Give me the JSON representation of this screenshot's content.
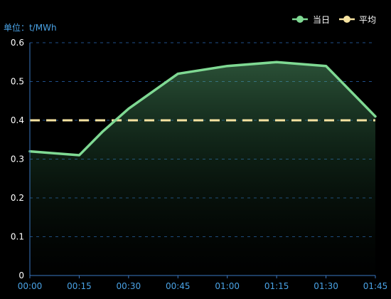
{
  "colors": {
    "background": "#000000",
    "today_line": "#7fd993",
    "average_line": "#f6e3a1",
    "axis_text": "#4aa3e6",
    "axis_line": "#3a78c2",
    "grid_line": "#1f4f8a",
    "legend_text": "#ffffff"
  },
  "chart_data": {
    "type": "line",
    "unit_label": "单位：t/MWh",
    "categories": [
      "00:00",
      "00:15",
      "00:30",
      "00:45",
      "01:00",
      "01:15",
      "01:30",
      "01:45"
    ],
    "x": [
      0,
      15,
      30,
      45,
      60,
      75,
      90,
      105
    ],
    "ylim": [
      0,
      0.6
    ],
    "yticks": [
      "0",
      "0.1",
      "0.2",
      "0.3",
      "0.4",
      "0.5",
      "0.6"
    ],
    "grid": "dashed horizontal",
    "legend_position": "top-right",
    "series": [
      {
        "name": "当日",
        "x": [
          0,
          15,
          22,
          30,
          45,
          60,
          75,
          90,
          105
        ],
        "values": [
          0.32,
          0.31,
          0.37,
          0.43,
          0.52,
          0.54,
          0.55,
          0.54,
          0.41
        ],
        "style": "solid area",
        "color": "#7fd993"
      },
      {
        "name": "平均",
        "values": [
          0.4,
          0.4,
          0.4,
          0.4,
          0.4,
          0.4,
          0.4,
          0.4
        ],
        "style": "dashed",
        "color": "#f6e3a1"
      }
    ]
  }
}
